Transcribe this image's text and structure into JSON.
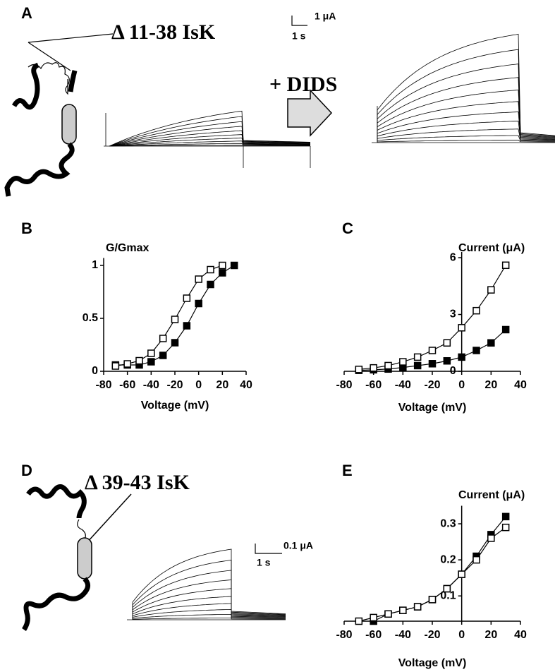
{
  "panels": {
    "A": {
      "letter": "A",
      "construct": "Δ 11-38 IsK",
      "treatment": "+ DIDS",
      "scale_current": "1 μA",
      "scale_time": "1 s"
    },
    "B": {
      "letter": "B"
    },
    "C": {
      "letter": "C"
    },
    "D": {
      "letter": "D",
      "construct": "Δ 39-43 IsK",
      "scale_current": "0.1 μA",
      "scale_time": "1 s"
    },
    "E": {
      "letter": "E"
    }
  },
  "chart_data": [
    {
      "type": "line",
      "y_label": "G/Gmax",
      "x_label": "Voltage (mV)",
      "x": [
        -70,
        -60,
        -50,
        -40,
        -30,
        -20,
        -10,
        0,
        10,
        20,
        30
      ],
      "xlim": [
        -80,
        40
      ],
      "xticks": [
        -80,
        -60,
        -40,
        -20,
        0,
        20,
        40
      ],
      "ylim": [
        0,
        1.07
      ],
      "yticks": [
        0,
        0.5,
        1
      ],
      "series": [
        {
          "color": "#000000",
          "marker_fill": "#000000",
          "values": [
            0.06,
            0.06,
            0.06,
            0.09,
            0.15,
            0.27,
            0.43,
            0.64,
            0.82,
            0.93,
            1.0
          ]
        },
        {
          "color": "#000000",
          "marker_fill": "#ffffff",
          "values": [
            0.05,
            0.07,
            0.1,
            0.17,
            0.31,
            0.49,
            0.69,
            0.87,
            0.96,
            1.0,
            null
          ]
        }
      ]
    },
    {
      "type": "line",
      "y_label": "Current (μA)",
      "x_label": "Voltage (mV)",
      "y_axis_crosses": 0,
      "x": [
        -70,
        -60,
        -50,
        -40,
        -30,
        -20,
        -10,
        0,
        10,
        20,
        30
      ],
      "xlim": [
        -80,
        40
      ],
      "xticks": [
        -80,
        -60,
        -40,
        -20,
        0,
        20,
        40
      ],
      "ylim": [
        0,
        6.3
      ],
      "yticks": [
        0,
        3,
        6
      ],
      "series": [
        {
          "color": "#000000",
          "marker_fill": "#000000",
          "values": [
            0.05,
            0.08,
            0.12,
            0.2,
            0.3,
            0.4,
            0.55,
            0.75,
            1.1,
            1.5,
            2.2
          ]
        },
        {
          "color": "#000000",
          "marker_fill": "#ffffff",
          "values": [
            0.1,
            0.18,
            0.3,
            0.5,
            0.75,
            1.1,
            1.5,
            2.3,
            3.2,
            4.3,
            5.6
          ]
        }
      ]
    },
    {
      "type": "line",
      "y_label": "Current (μA)",
      "x_label": "Voltage (mV)",
      "y_axis_crosses": 0,
      "x": [
        -70,
        -60,
        -50,
        -40,
        -30,
        -20,
        -10,
        0,
        10,
        20,
        30
      ],
      "xlim": [
        -80,
        40
      ],
      "xticks": [
        -80,
        -60,
        -40,
        -20,
        0,
        20,
        40
      ],
      "ylim": [
        0.03,
        0.35
      ],
      "yticks": [
        0.1,
        0.2,
        0.3
      ],
      "series": [
        {
          "color": "#000000",
          "marker_fill": "#000000",
          "values": [
            null,
            0.03,
            0.05,
            0.06,
            0.07,
            0.09,
            0.12,
            0.16,
            0.21,
            0.27,
            0.32
          ]
        },
        {
          "color": "#000000",
          "marker_fill": "#ffffff",
          "values": [
            0.03,
            0.04,
            0.05,
            0.06,
            0.07,
            0.09,
            0.12,
            0.16,
            0.2,
            0.26,
            0.29
          ]
        }
      ]
    }
  ]
}
